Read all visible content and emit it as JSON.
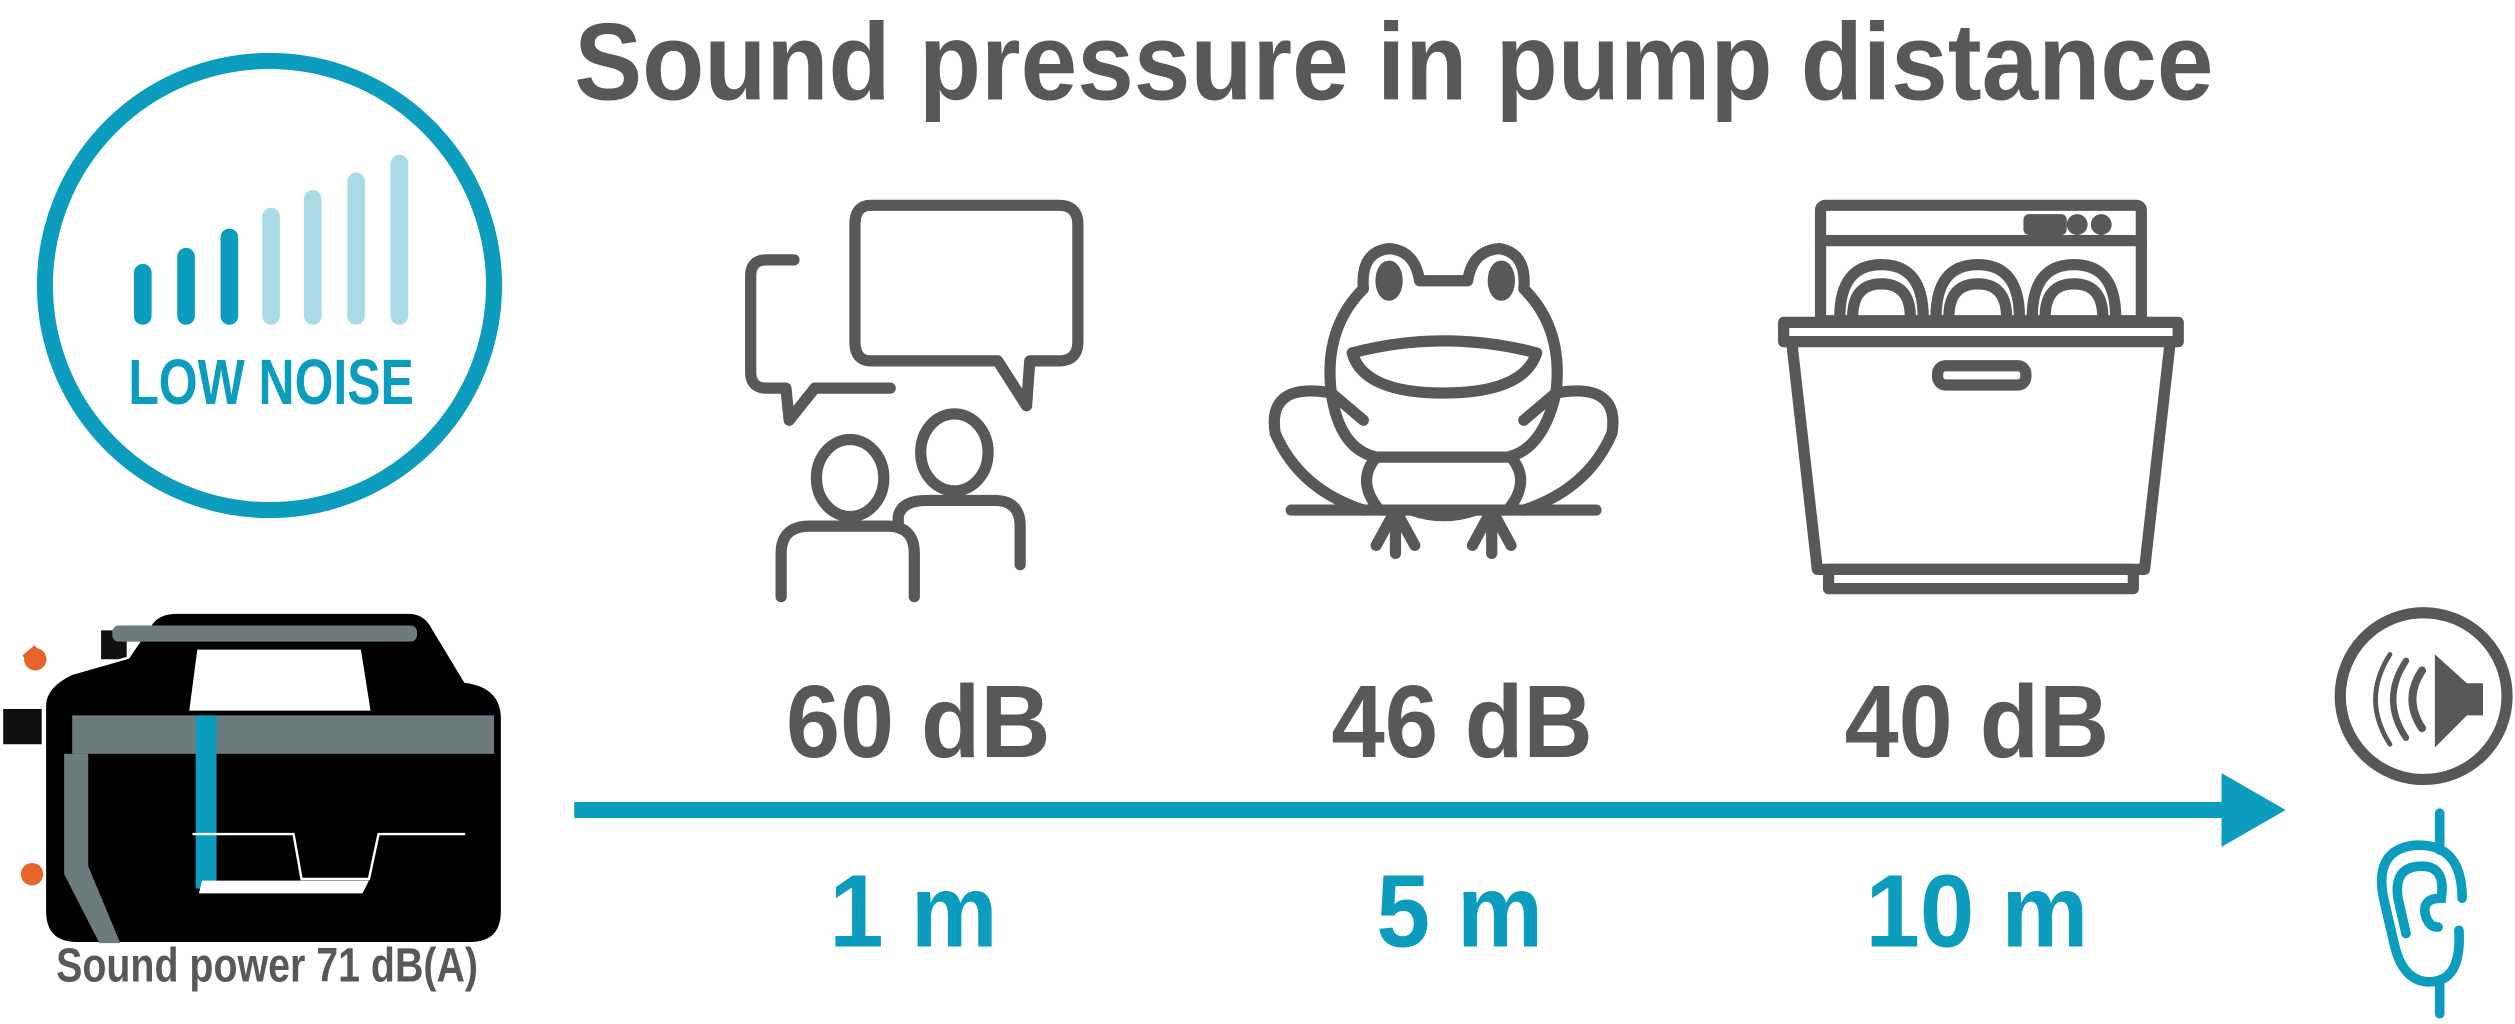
{
  "title": "Sound pressure in pump distance",
  "badge": {
    "label": "LOW NOISE",
    "bars_total": 7,
    "bars_active": 3
  },
  "pump": {
    "label": "Sound power 71 dB(A)"
  },
  "items": [
    {
      "icon": "conversation-icon",
      "level": "60 dB",
      "distance": "1 m"
    },
    {
      "icon": "frog-icon",
      "level": "46 dB",
      "distance": "5 m"
    },
    {
      "icon": "dishwasher-icon",
      "level": "40 dB",
      "distance": "10 m"
    }
  ],
  "end_icons": [
    "speaker-icon",
    "ear-icon"
  ],
  "colors": {
    "teal": "#0c9cbd",
    "light_teal": "#a9dbe7",
    "gray": "#58585a",
    "orange": "#e5662a"
  }
}
